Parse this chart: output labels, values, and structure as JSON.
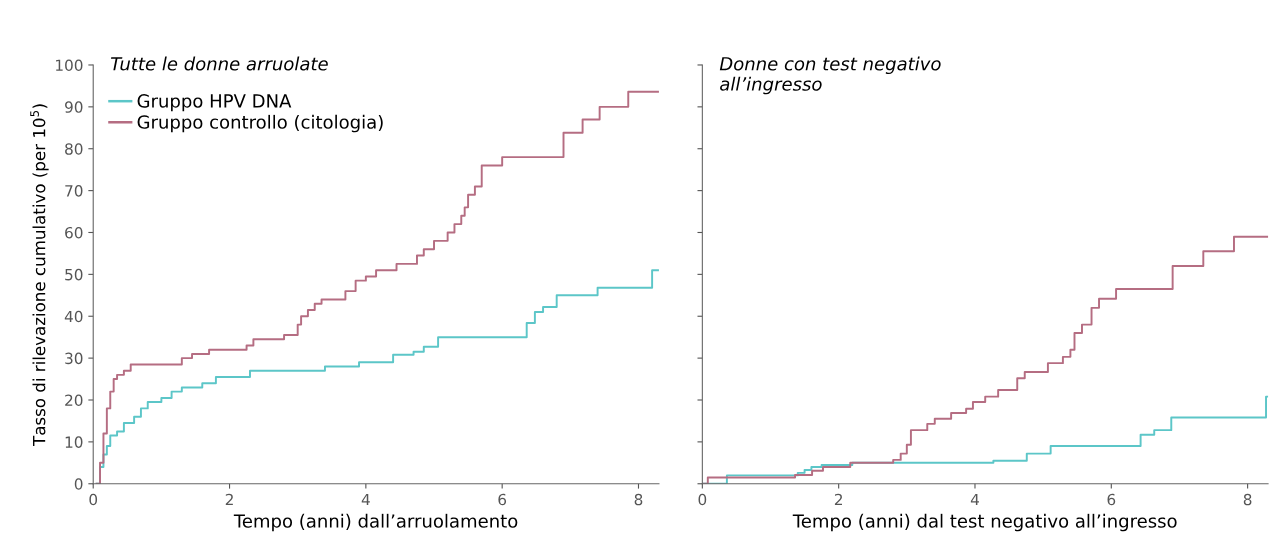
{
  "chart_data": [
    {
      "type": "step",
      "title": "Tutte le donne arruolate",
      "xlabel": "Tempo (anni) dall’arruolamento",
      "ylabel": "Tasso di rilevazione cumulativo (per 10$^{5}$)",
      "xlim": [
        0,
        8.3
      ],
      "ylim": [
        0,
        100
      ],
      "xticks": [
        0,
        2,
        4,
        6,
        8
      ],
      "yticks": [
        0,
        10,
        20,
        30,
        40,
        50,
        60,
        70,
        80,
        90,
        100
      ],
      "legend": "top left",
      "grid": false,
      "marker": "none",
      "line_style": "solid",
      "series": [
        {
          "name": "Gruppo HPV DNA",
          "color": "#5cc6c8",
          "x": [
            0.05,
            0.1,
            0.15,
            0.2,
            0.25,
            0.35,
            0.45,
            0.6,
            0.7,
            0.8,
            1.0,
            1.15,
            1.3,
            1.6,
            1.8,
            2.3,
            3.4,
            3.9,
            4.4,
            4.7,
            4.85,
            5.06,
            6.36,
            6.48,
            6.6,
            6.8,
            7.4,
            8.2,
            8.3
          ],
          "values": [
            0,
            4,
            7,
            9,
            11.5,
            12.5,
            14.5,
            16,
            18,
            19.5,
            20.5,
            22,
            23,
            24,
            25.5,
            27,
            28,
            29,
            30.8,
            31.5,
            32.7,
            35,
            38.4,
            41,
            42.2,
            45,
            46.8,
            51,
            51
          ]
        },
        {
          "name": "Gruppo controllo (citologia)",
          "color": "#b56d82",
          "x": [
            0.05,
            0.1,
            0.15,
            0.2,
            0.25,
            0.3,
            0.35,
            0.45,
            0.55,
            1.3,
            1.45,
            1.7,
            2.25,
            2.35,
            2.8,
            3.0,
            3.05,
            3.15,
            3.25,
            3.35,
            3.7,
            3.85,
            4.0,
            4.15,
            4.45,
            4.75,
            4.85,
            5.0,
            5.2,
            5.3,
            5.4,
            5.45,
            5.5,
            5.6,
            5.7,
            6.0,
            6.9,
            7.18,
            7.43,
            7.85,
            8.3
          ],
          "values": [
            0,
            5,
            12,
            18,
            22,
            25,
            26,
            27,
            28.5,
            30,
            31,
            32,
            33,
            34.5,
            35.5,
            38,
            40,
            41.5,
            43,
            44,
            46,
            48.5,
            49.5,
            51,
            52.5,
            54.5,
            56,
            58,
            60,
            62,
            64,
            66,
            69,
            71,
            76,
            78,
            83.8,
            87,
            90,
            93.6,
            93.6
          ]
        }
      ]
    },
    {
      "type": "step",
      "title": "Donne con test negativo\nall’ingresso",
      "xlabel": "Tempo (anni) dal test negativo all’ingresso",
      "xlim": [
        0,
        8.3
      ],
      "ylim": [
        0,
        100
      ],
      "xticks": [
        0,
        2,
        4,
        6,
        8
      ],
      "yticks": [
        0,
        10,
        20,
        30,
        40,
        50,
        60,
        70,
        80,
        90,
        100
      ],
      "tick_labels": "x",
      "grid": false,
      "marker": "none",
      "line_style": "solid",
      "series": [
        {
          "color": "#5cc6c8",
          "x": [
            0,
            0.36,
            1.4,
            1.5,
            1.6,
            1.75,
            2.2,
            4.27,
            4.76,
            5.11,
            6.43,
            6.63,
            6.88,
            8.27,
            8.3
          ],
          "values": [
            0,
            2,
            2.6,
            3.3,
            4,
            4.5,
            5,
            5.5,
            7.2,
            9,
            11.7,
            12.8,
            15.8,
            20.8,
            20.8
          ]
        },
        {
          "color": "#b56d82",
          "x": [
            0,
            0.08,
            1.36,
            1.61,
            1.77,
            2.17,
            2.8,
            2.91,
            3.0,
            3.06,
            3.3,
            3.41,
            3.65,
            3.87,
            3.97,
            4.15,
            4.34,
            4.62,
            4.73,
            5.07,
            5.29,
            5.4,
            5.46,
            5.57,
            5.71,
            5.82,
            6.07,
            6.9,
            7.35,
            7.8,
            8.3
          ],
          "values": [
            0,
            1.5,
            2.1,
            3.1,
            4,
            5,
            5.7,
            7.2,
            9.3,
            12.8,
            14.3,
            15.5,
            16.9,
            17.9,
            19.5,
            20.8,
            22.4,
            25.2,
            26.7,
            28.8,
            30.3,
            32,
            36,
            38,
            42,
            44.2,
            46.5,
            52,
            55.5,
            59,
            59
          ]
        }
      ]
    }
  ]
}
